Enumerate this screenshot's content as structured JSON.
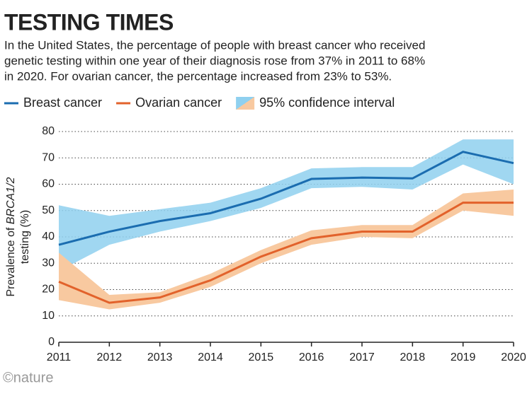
{
  "chart_data": {
    "type": "line",
    "title": "TESTING TIMES",
    "subtitle": [
      "In the United States, the percentage of people with breast cancer who received",
      "genetic testing within one year of their diagnosis rose from 37% in 2011 to 68%",
      "in 2020. For ovarian cancer, the percentage increased from 23% to 53%."
    ],
    "ylabel": [
      "Prevalence of ",
      "BRCA1/2",
      "testing (%)"
    ],
    "x": [
      2011,
      2012,
      2013,
      2014,
      2015,
      2016,
      2017,
      2018,
      2019,
      2020
    ],
    "xlim": [
      2011,
      2020
    ],
    "xticks": [
      2011,
      2012,
      2013,
      2014,
      2015,
      2016,
      2017,
      2018,
      2019,
      2020
    ],
    "ylim": [
      0,
      80
    ],
    "yticks": [
      0,
      10,
      20,
      30,
      40,
      50,
      60,
      70,
      80
    ],
    "grid": true,
    "legend": "top-left",
    "ci_label": "95% confidence interval",
    "series": [
      {
        "name": "Breast cancer",
        "color": "#1b6db0",
        "band_color": "#8fd0ef",
        "values": [
          37,
          42,
          46,
          49,
          54.5,
          62,
          62.5,
          62.2,
          72.3,
          68
        ],
        "ci_lower": [
          27,
          37,
          42,
          46,
          51,
          58.5,
          59,
          58,
          67.5,
          60
        ],
        "ci_upper": [
          52,
          48,
          50.5,
          53,
          58.5,
          66,
          66.5,
          66.5,
          77,
          77
        ]
      },
      {
        "name": "Ovarian cancer",
        "color": "#e2622b",
        "band_color": "#f8c9a0",
        "values": [
          23,
          15,
          17,
          23.5,
          32.5,
          39.5,
          42,
          42,
          53,
          53
        ],
        "ci_lower": [
          16,
          12.5,
          15,
          21,
          30,
          37,
          40,
          39.5,
          50,
          48
        ],
        "ci_upper": [
          34,
          18,
          19,
          26,
          35,
          42.5,
          44.5,
          44.5,
          56.5,
          58
        ]
      }
    ],
    "source": "©nature"
  }
}
